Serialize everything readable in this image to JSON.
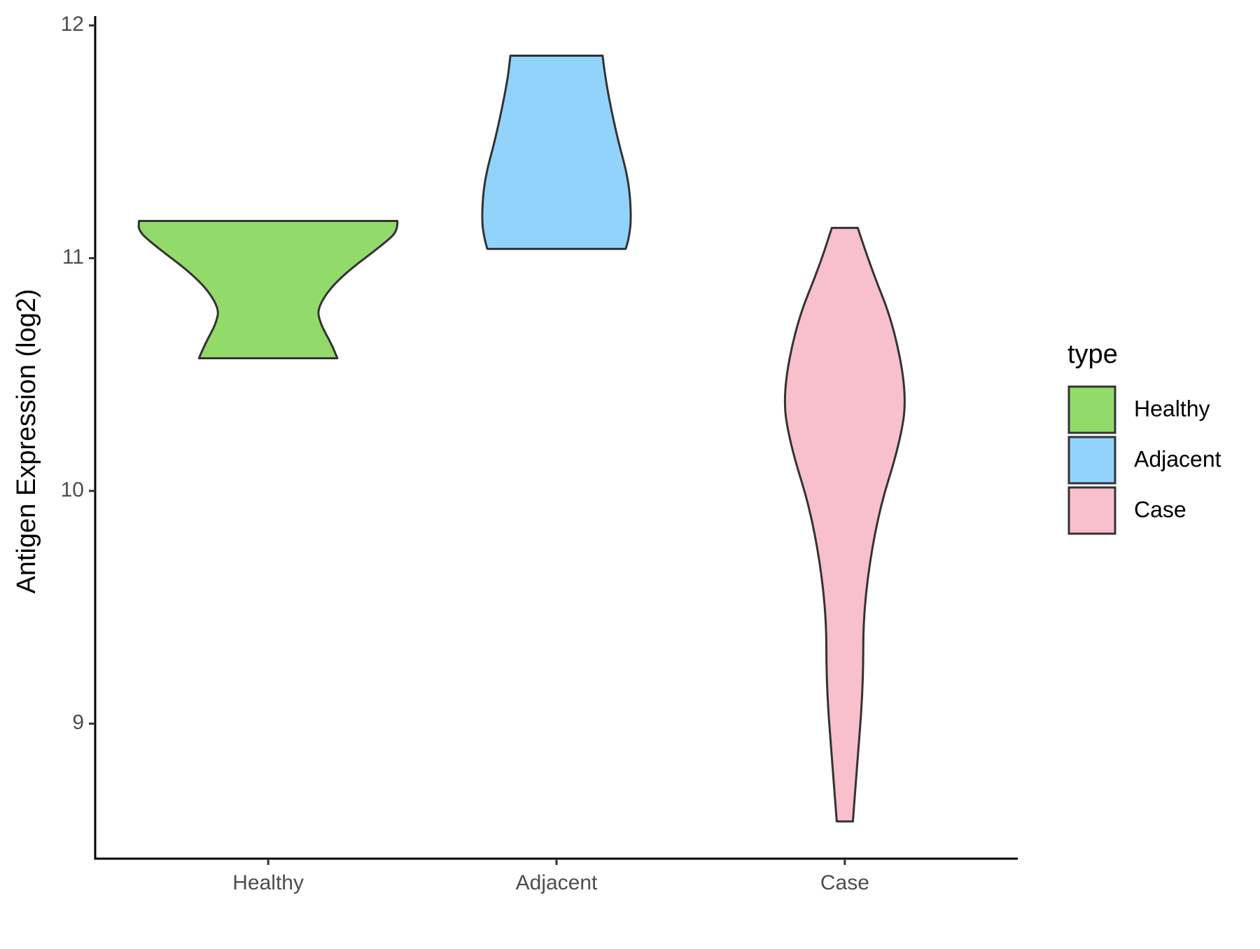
{
  "chart_data": {
    "type": "violin",
    "y_label": "Antigen Expression (log2)",
    "categories": [
      "Healthy",
      "Adjacent",
      "Case"
    ],
    "ylim": [
      8.42,
      12.04
    ],
    "yticks": [
      9,
      10,
      11,
      12
    ],
    "legend_title": "type",
    "legend": "right",
    "series": [
      {
        "name": "Healthy",
        "color": "#92db6a",
        "y": [
          11.16,
          11.12,
          11.07,
          10.91,
          10.79,
          10.72,
          10.63,
          10.57
        ],
        "half_width": [
          0.448,
          0.45,
          0.41,
          0.24,
          0.17,
          0.18,
          0.22,
          0.24
        ]
      },
      {
        "name": "Adjacent",
        "color": "#92d3fc",
        "y": [
          11.87,
          11.76,
          11.52,
          11.34,
          11.17,
          11.08,
          11.04
        ],
        "half_width": [
          0.16,
          0.17,
          0.21,
          0.25,
          0.26,
          0.25,
          0.24
        ]
      },
      {
        "name": "Case",
        "color": "#f7c0cc",
        "y": [
          11.13,
          10.96,
          10.72,
          10.41,
          10.2,
          9.89,
          9.5,
          9.16,
          8.81,
          8.58
        ],
        "half_width": [
          0.045,
          0.09,
          0.168,
          0.216,
          0.19,
          0.112,
          0.064,
          0.064,
          0.042,
          0.028
        ]
      }
    ]
  }
}
